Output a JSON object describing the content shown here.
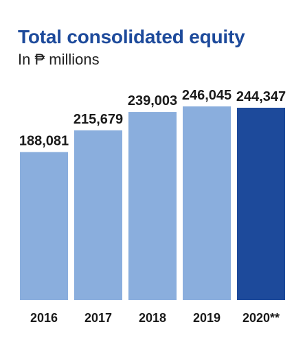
{
  "chart_data": {
    "type": "bar",
    "title": "Total consolidated equity",
    "subtitle": "In ₱ millions",
    "categories": [
      "2016",
      "2017",
      "2018",
      "2019",
      "2020**"
    ],
    "values": [
      188081,
      215679,
      239003,
      246045,
      244347
    ],
    "value_labels": [
      "188,081",
      "215,679",
      "239,003",
      "246,045",
      "244,347"
    ],
    "xlabel": "",
    "ylabel": "",
    "ylim": [
      0,
      246045
    ],
    "grid": false,
    "legend": "none",
    "colors": {
      "default_bar": "#8aaedd",
      "highlight_bar": "#1d4a9b",
      "title": "#1d4a9b",
      "text": "#1a1a1a"
    },
    "highlight_index": 4
  }
}
